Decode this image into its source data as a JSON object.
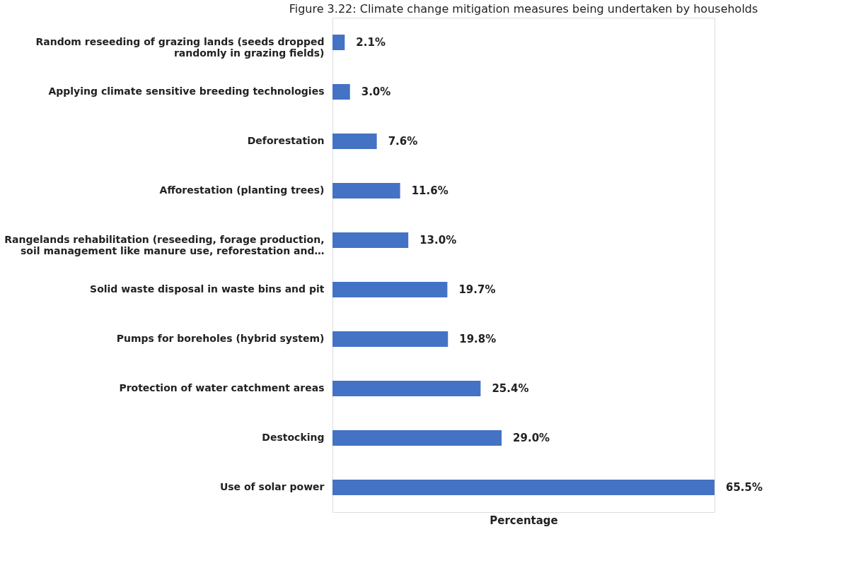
{
  "chart_data": {
    "type": "bar",
    "orientation": "horizontal",
    "title": "Figure 3.22: Climate change mitigation measures being undertaken by households",
    "xlabel": "Percentage",
    "categories": [
      "Random reseeding of grazing lands (seeds dropped\nrandomly in grazing fields)",
      "Applying climate sensitive breeding technologies",
      "Deforestation",
      "Afforestation (planting trees)",
      "Rangelands rehabilitation (reseeding, forage production,\nsoil management like manure use, reforestation and…",
      "Solid waste  disposal in waste bins and pit",
      "Pumps for boreholes (hybrid system)",
      "Protection of water catchment areas",
      "Destocking",
      "Use of solar power"
    ],
    "values": [
      2.1,
      3.0,
      7.6,
      11.6,
      13.0,
      19.7,
      19.8,
      25.4,
      29.0,
      65.5
    ],
    "value_labels": [
      "2.1%",
      "3.0%",
      "7.6%",
      "11.6%",
      "13.0%",
      "19.7%",
      "19.8%",
      "25.4%",
      "29.0%",
      "65.5%"
    ],
    "color": "#4472c4",
    "relative": false
  }
}
